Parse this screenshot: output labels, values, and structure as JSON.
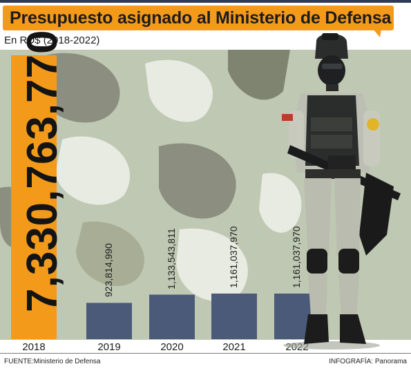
{
  "header": {
    "title": "Presupuesto asignado al Ministerio de Defensa",
    "subtitle": "En RD$ (2018-2022)"
  },
  "footer": {
    "source": "FUENTE:Ministerio de Defensa",
    "credit": "INFOGRAFÍA: Panorama"
  },
  "colors": {
    "accent": "#f39a1b",
    "bar": "#4b5a78",
    "highlight_bar": "#f39a1b",
    "rule": "#2f3a57"
  },
  "illustration": "soldier-with-rifle",
  "chart_data": {
    "type": "bar",
    "title": "Presupuesto asignado al Ministerio de Defensa",
    "subtitle": "En RD$ (2018-2022)",
    "xlabel": "",
    "ylabel": "",
    "categories": [
      "2018",
      "2019",
      "2020",
      "2021",
      "2022"
    ],
    "values": [
      7330763770,
      923814990,
      1133543811,
      1161037970,
      1161037970
    ],
    "value_labels": [
      "7,330,763,770",
      "923,814,990",
      "1,133,543,811",
      "1,161,037,970",
      "1,161,037,970"
    ],
    "highlight": "2018",
    "grid": false,
    "legend": "none"
  }
}
